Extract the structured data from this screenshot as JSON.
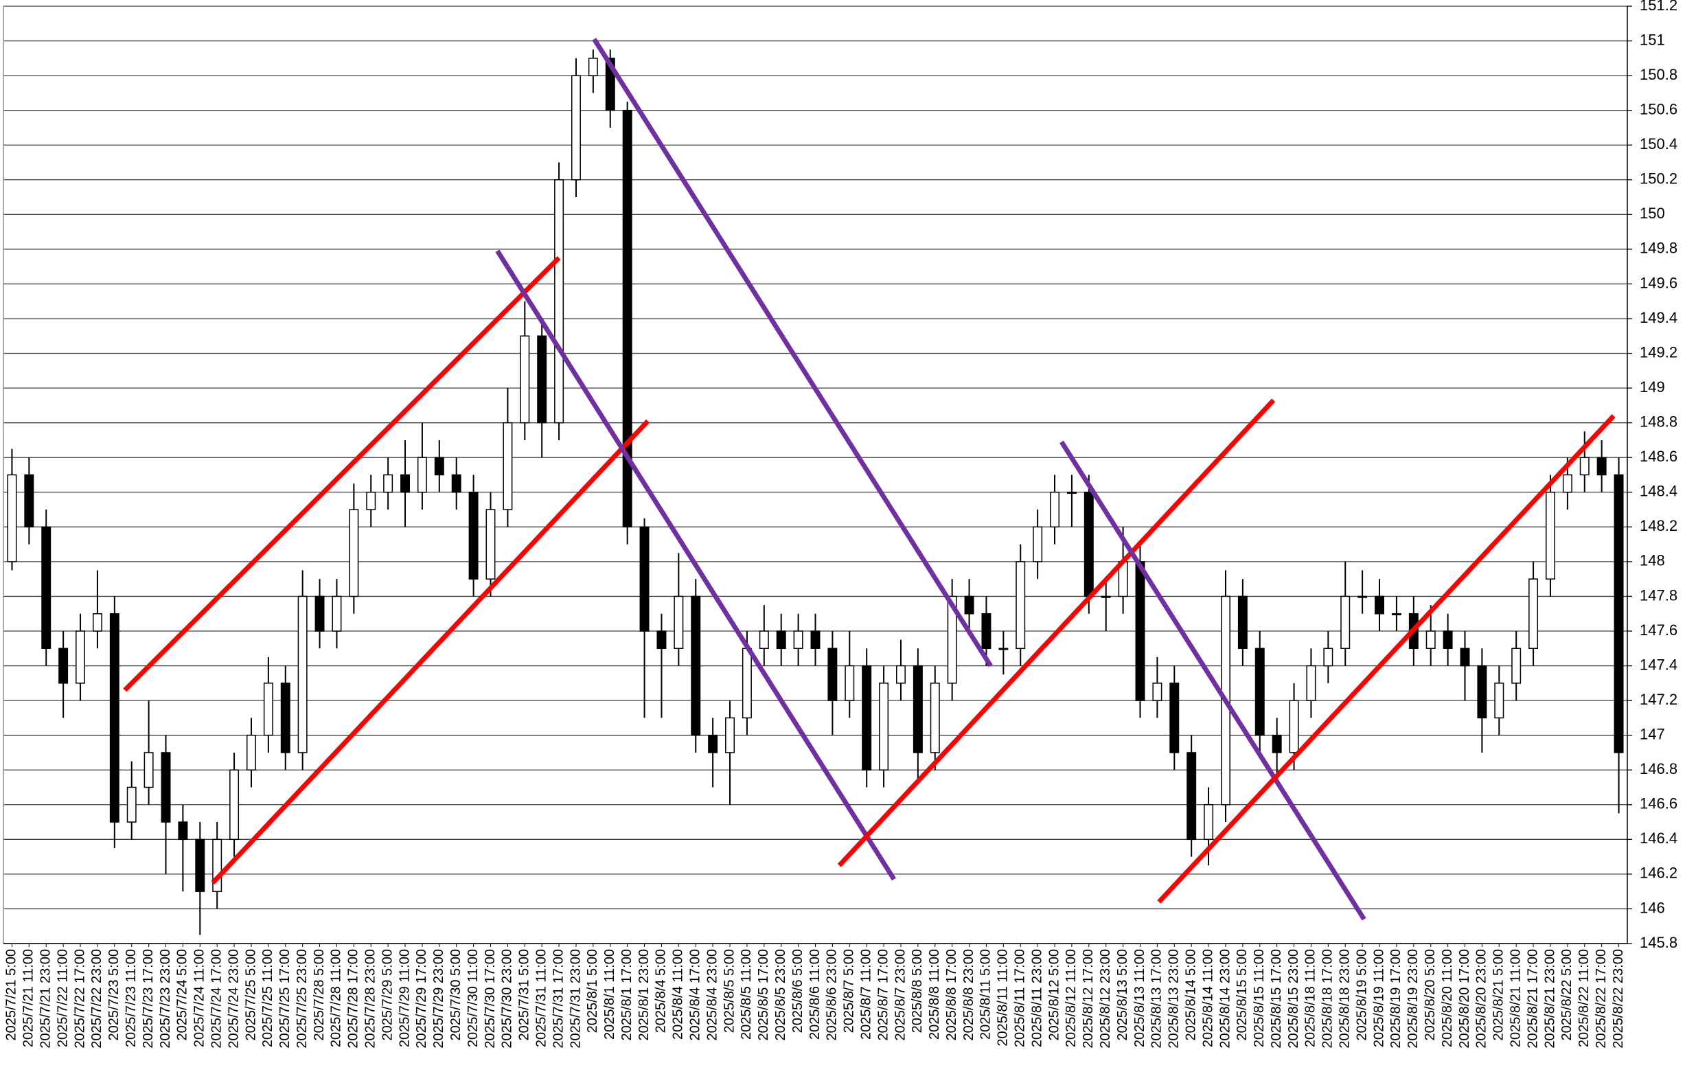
{
  "chart_data": {
    "type": "candlestick",
    "categories": [
      "2025/7/21 5:00",
      "2025/7/21 11:00",
      "2025/7/21 23:00",
      "2025/7/22 11:00",
      "2025/7/22 17:00",
      "2025/7/22 23:00",
      "2025/7/23 5:00",
      "2025/7/23 11:00",
      "2025/7/23 17:00",
      "2025/7/23 23:00",
      "2025/7/24 5:00",
      "2025/7/24 11:00",
      "2025/7/24 17:00",
      "2025/7/24 23:00",
      "2025/7/25 5:00",
      "2025/7/25 11:00",
      "2025/7/25 17:00",
      "2025/7/25 23:00",
      "2025/7/28 5:00",
      "2025/7/28 11:00",
      "2025/7/28 17:00",
      "2025/7/28 23:00",
      "2025/7/29 5:00",
      "2025/7/29 11:00",
      "2025/7/29 17:00",
      "2025/7/29 23:00",
      "2025/7/30 5:00",
      "2025/7/30 11:00",
      "2025/7/30 17:00",
      "2025/7/30 23:00",
      "2025/7/31 5:00",
      "2025/7/31 11:00",
      "2025/7/31 17:00",
      "2025/7/31 23:00",
      "2025/8/1 5:00",
      "2025/8/1 11:00",
      "2025/8/1 17:00",
      "2025/8/1 23:00",
      "2025/8/4 5:00",
      "2025/8/4 11:00",
      "2025/8/4 17:00",
      "2025/8/4 23:00",
      "2025/8/5 5:00",
      "2025/8/5 11:00",
      "2025/8/5 17:00",
      "2025/8/5 23:00",
      "2025/8/6 5:00",
      "2025/8/6 11:00",
      "2025/8/6 23:00",
      "2025/8/7 5:00",
      "2025/8/7 11:00",
      "2025/8/7 17:00",
      "2025/8/7 23:00",
      "2025/8/8 5:00",
      "2025/8/8 11:00",
      "2025/8/8 17:00",
      "2025/8/8 23:00",
      "2025/8/11 5:00",
      "2025/8/11 11:00",
      "2025/8/11 17:00",
      "2025/8/11 23:00",
      "2025/8/12 5:00",
      "2025/8/12 11:00",
      "2025/8/12 17:00",
      "2025/8/12 23:00",
      "2025/8/13 5:00",
      "2025/8/13 11:00",
      "2025/8/13 17:00",
      "2025/8/13 23:00",
      "2025/8/14 5:00",
      "2025/8/14 11:00",
      "2025/8/14 23:00",
      "2025/8/15 5:00",
      "2025/8/15 11:00",
      "2025/8/15 17:00",
      "2025/8/15 23:00",
      "2025/8/18 11:00",
      "2025/8/18 17:00",
      "2025/8/18 23:00",
      "2025/8/19 5:00",
      "2025/8/19 11:00",
      "2025/8/19 17:00",
      "2025/8/19 23:00",
      "2025/8/20 5:00",
      "2025/8/20 11:00",
      "2025/8/20 17:00",
      "2025/8/20 23:00",
      "2025/8/21 5:00",
      "2025/8/21 11:00",
      "2025/8/21 17:00",
      "2025/8/21 23:00",
      "2025/8/22 5:00",
      "2025/8/22 11:00",
      "2025/8/22 17:00",
      "2025/8/22 23:00"
    ],
    "open": [
      148.0,
      148.5,
      148.2,
      147.5,
      147.3,
      147.6,
      147.7,
      146.5,
      146.7,
      146.9,
      146.5,
      146.4,
      146.1,
      146.4,
      146.8,
      147.0,
      147.3,
      146.9,
      147.8,
      147.6,
      147.8,
      148.3,
      148.4,
      148.5,
      148.4,
      148.6,
      148.5,
      148.4,
      147.9,
      148.3,
      148.8,
      149.3,
      148.8,
      150.2,
      150.8,
      150.9,
      150.6,
      148.2,
      147.6,
      147.5,
      147.8,
      147.0,
      146.9,
      147.1,
      147.5,
      147.6,
      147.5,
      147.6,
      147.5,
      147.2,
      147.4,
      146.8,
      147.3,
      147.4,
      146.9,
      147.3,
      147.8,
      147.7,
      147.5,
      147.5,
      148.0,
      148.2,
      148.4,
      148.4,
      147.8,
      147.8,
      148.0,
      147.2,
      147.3,
      146.9,
      146.4,
      146.6,
      147.8,
      147.5,
      147.0,
      146.9,
      147.2,
      147.4,
      147.5,
      147.8,
      147.8,
      147.7,
      147.7,
      147.5,
      147.6,
      147.5,
      147.4,
      147.1,
      147.3,
      147.5,
      147.9,
      148.4,
      148.5,
      148.6,
      148.5
    ],
    "high": [
      148.65,
      148.6,
      148.3,
      147.6,
      147.7,
      147.95,
      147.8,
      146.85,
      147.2,
      147.0,
      146.6,
      146.5,
      146.5,
      146.9,
      147.1,
      147.45,
      147.4,
      147.95,
      147.9,
      147.9,
      148.45,
      148.5,
      148.6,
      148.7,
      148.8,
      148.7,
      148.6,
      148.5,
      148.4,
      149.0,
      149.5,
      149.4,
      150.3,
      150.9,
      150.95,
      150.95,
      150.65,
      148.25,
      147.7,
      148.05,
      147.9,
      147.1,
      147.2,
      147.6,
      147.75,
      147.7,
      147.7,
      147.7,
      147.6,
      147.6,
      147.5,
      147.4,
      147.55,
      147.5,
      147.4,
      147.9,
      147.9,
      147.8,
      147.6,
      148.1,
      148.3,
      148.5,
      148.5,
      148.5,
      147.9,
      148.2,
      148.1,
      147.45,
      147.4,
      147.0,
      146.7,
      147.95,
      147.9,
      147.6,
      147.1,
      147.3,
      147.5,
      147.6,
      148.0,
      147.95,
      147.9,
      147.8,
      147.8,
      147.75,
      147.7,
      147.6,
      147.5,
      147.4,
      147.6,
      148.0,
      148.5,
      148.6,
      148.75,
      148.7,
      148.6
    ],
    "low": [
      147.95,
      148.1,
      147.4,
      147.1,
      147.2,
      147.5,
      146.35,
      146.4,
      146.6,
      146.2,
      146.1,
      145.85,
      146.0,
      146.3,
      146.7,
      146.9,
      146.8,
      146.8,
      147.5,
      147.5,
      147.7,
      148.2,
      148.3,
      148.2,
      148.3,
      148.4,
      148.3,
      147.8,
      147.8,
      148.2,
      148.7,
      148.6,
      148.7,
      150.1,
      150.7,
      150.5,
      148.1,
      147.1,
      147.1,
      147.4,
      146.9,
      146.7,
      146.6,
      147.0,
      147.4,
      147.4,
      147.4,
      147.4,
      147.0,
      147.1,
      146.7,
      146.7,
      147.2,
      146.75,
      146.8,
      147.2,
      147.6,
      147.4,
      147.35,
      147.4,
      147.9,
      148.1,
      148.2,
      147.7,
      147.6,
      147.7,
      147.1,
      147.1,
      146.8,
      146.3,
      146.25,
      146.5,
      147.4,
      146.9,
      146.75,
      146.8,
      147.1,
      147.3,
      147.4,
      147.7,
      147.6,
      147.6,
      147.4,
      147.4,
      147.4,
      147.2,
      146.9,
      147.0,
      147.2,
      147.4,
      147.8,
      148.3,
      148.4,
      148.4,
      146.55
    ],
    "close": [
      148.5,
      148.2,
      147.5,
      147.3,
      147.6,
      147.7,
      146.5,
      146.7,
      146.9,
      146.5,
      146.4,
      146.1,
      146.4,
      146.8,
      147.0,
      147.3,
      146.9,
      147.8,
      147.6,
      147.8,
      148.3,
      148.4,
      148.5,
      148.4,
      148.6,
      148.5,
      148.4,
      147.9,
      148.3,
      148.8,
      149.3,
      148.8,
      150.2,
      150.8,
      150.9,
      150.6,
      148.2,
      147.6,
      147.5,
      147.8,
      147.0,
      146.9,
      147.1,
      147.5,
      147.6,
      147.5,
      147.6,
      147.5,
      147.2,
      147.4,
      146.8,
      147.3,
      147.4,
      146.9,
      147.3,
      147.8,
      147.7,
      147.5,
      147.5,
      148.0,
      148.2,
      148.4,
      148.4,
      147.8,
      147.8,
      148.0,
      147.2,
      147.3,
      146.9,
      146.4,
      146.6,
      147.8,
      147.5,
      147.0,
      146.9,
      147.2,
      147.4,
      147.5,
      147.8,
      147.8,
      147.7,
      147.7,
      147.5,
      147.6,
      147.5,
      147.4,
      147.1,
      147.3,
      147.5,
      147.9,
      148.4,
      148.5,
      148.6,
      148.5,
      146.9
    ],
    "color": "#000000",
    "ylim": [
      145.8,
      151.2
    ],
    "yticks": [
      145.8,
      146,
      146.2,
      146.4,
      146.6,
      146.8,
      147,
      147.2,
      147.4,
      147.6,
      147.8,
      148,
      148.2,
      148.4,
      148.6,
      148.8,
      149,
      149.2,
      149.4,
      149.6,
      149.8,
      150,
      150.2,
      150.4,
      150.6,
      150.8,
      151,
      151.2
    ],
    "grid": true,
    "trendlines": [
      {
        "color": "#ff0000",
        "x": [
          6.6,
          32.0
        ],
        "y": [
          147.26,
          149.75
        ]
      },
      {
        "color": "#ff0000",
        "x": [
          11.75,
          37.2
        ],
        "y": [
          146.15,
          148.81
        ]
      },
      {
        "color": "#7030a0",
        "x": [
          34.06,
          57.25
        ],
        "y": [
          151.01,
          147.4
        ]
      },
      {
        "color": "#7030a0",
        "x": [
          28.4,
          51.6
        ],
        "y": [
          149.79,
          146.17
        ]
      },
      {
        "color": "#ff0000",
        "x": [
          48.4,
          73.8
        ],
        "y": [
          146.25,
          148.93
        ]
      },
      {
        "color": "#7030a0",
        "x": [
          61.4,
          79.1
        ],
        "y": [
          148.69,
          145.94
        ]
      },
      {
        "color": "#ff0000",
        "x": [
          67.1,
          93.7
        ],
        "y": [
          146.04,
          148.84
        ]
      }
    ]
  }
}
